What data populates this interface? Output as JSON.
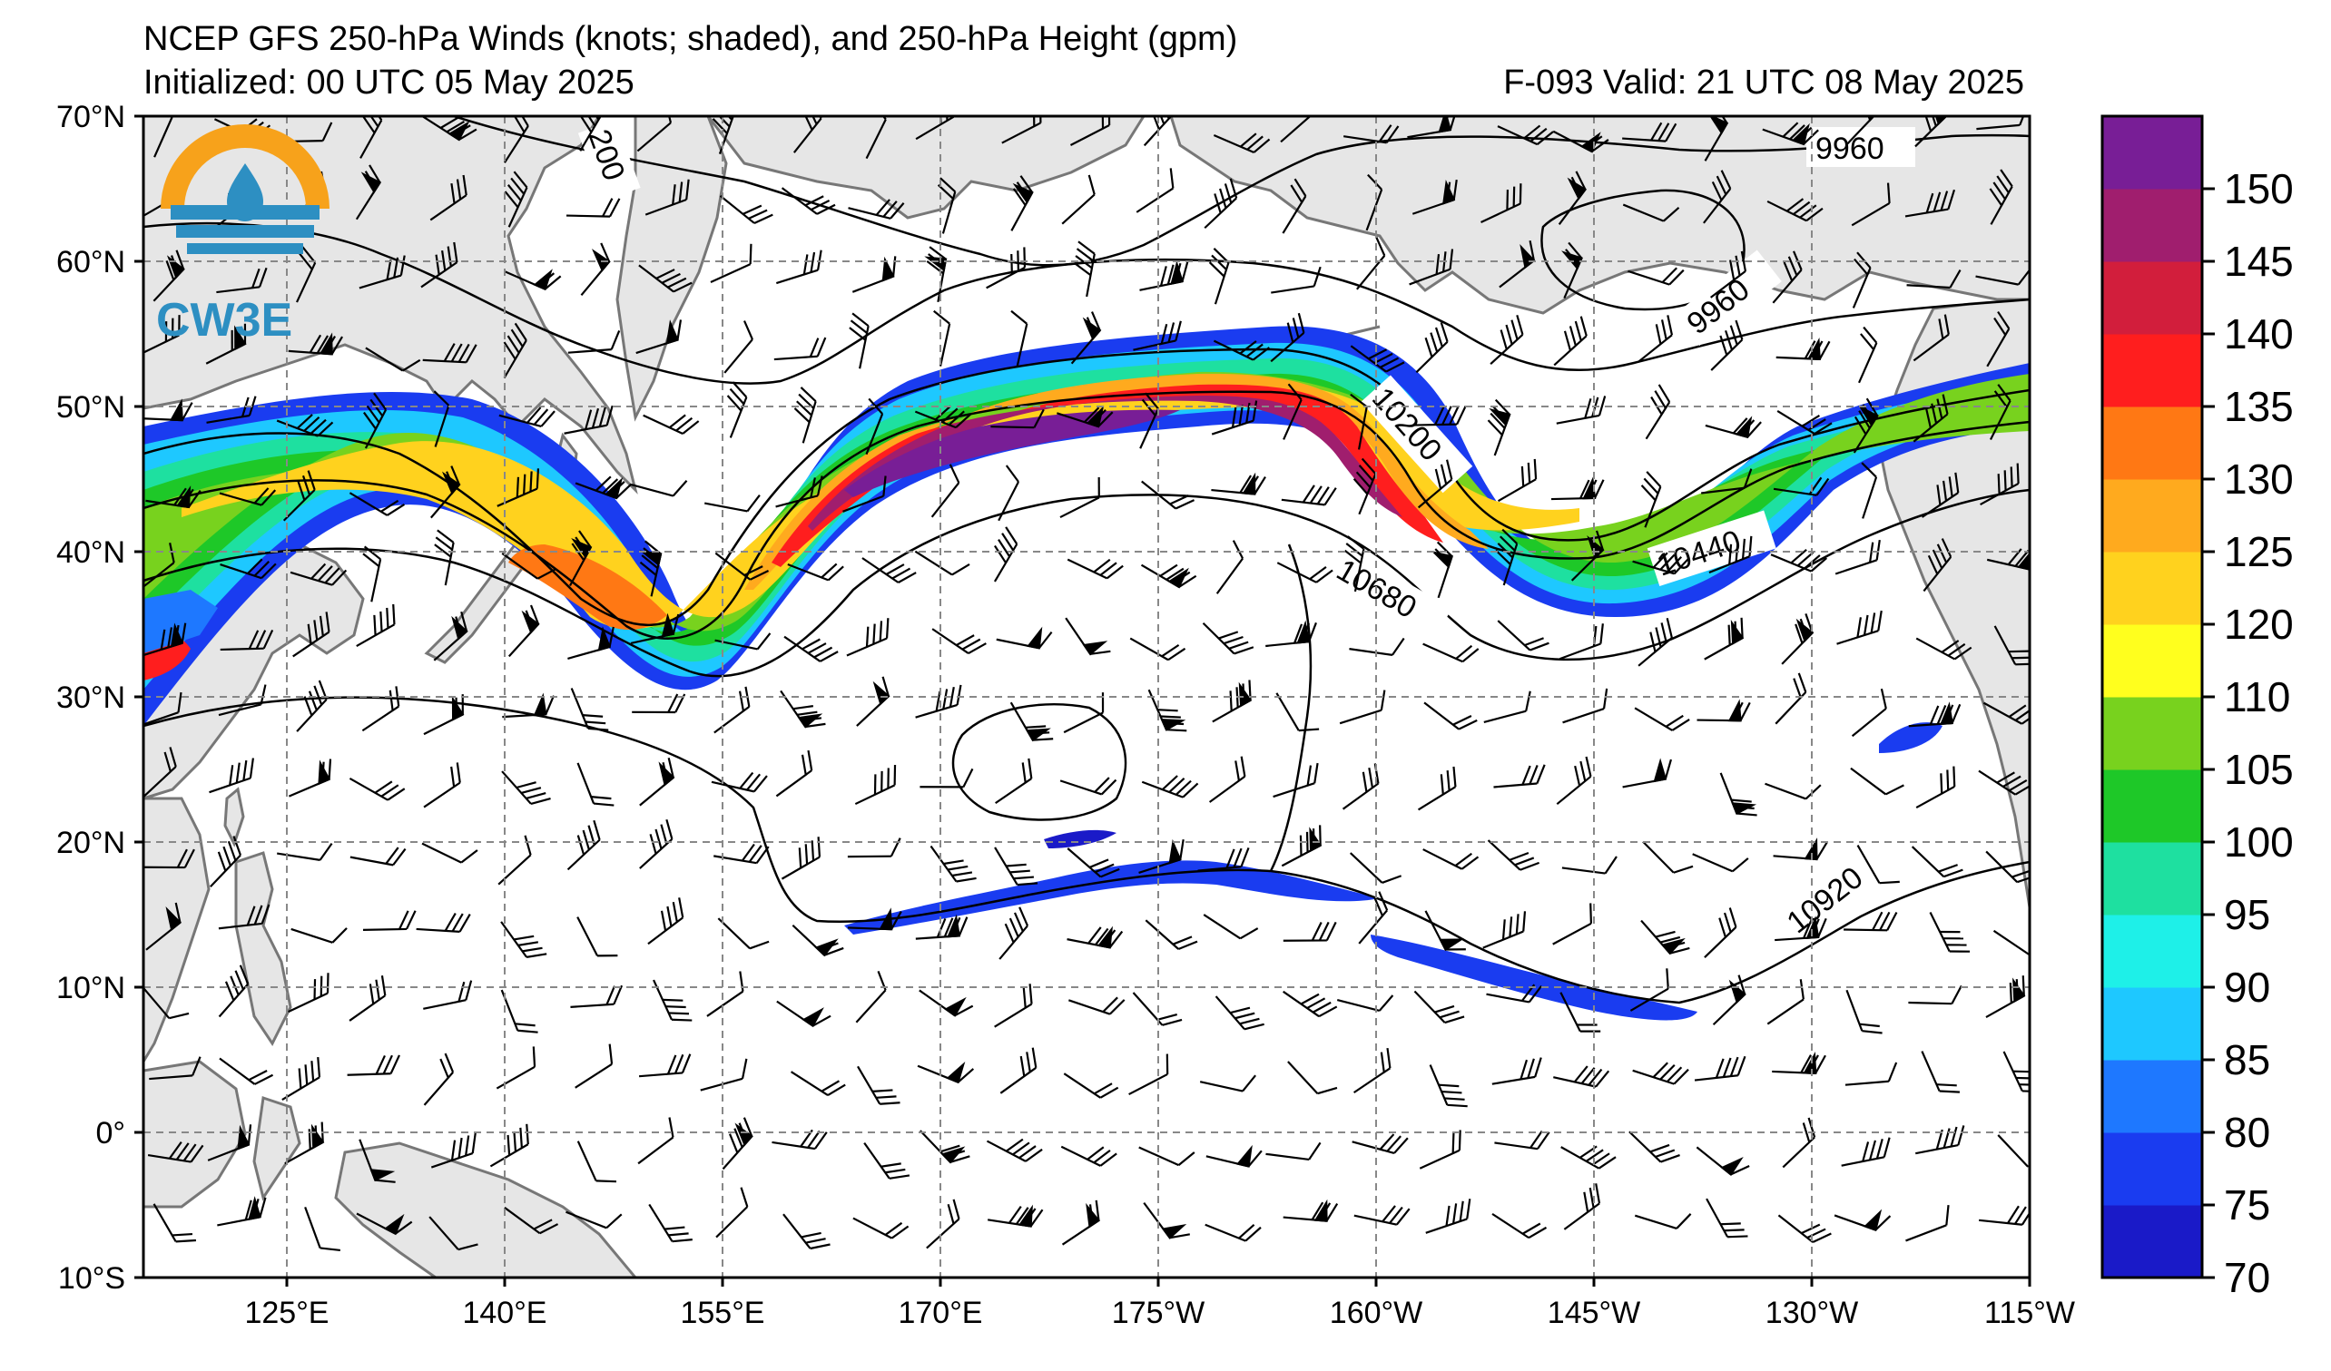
{
  "header": {
    "title": "NCEP GFS 250-hPa Winds (knots; shaded), and 250-hPa Height (gpm)",
    "initialized": "Initialized: 00 UTC 05 May 2025",
    "valid": "F-093  Valid: 21 UTC 08 May 2025"
  },
  "logo": {
    "text": "CW3E",
    "colors": {
      "ring": "#f7a21b",
      "water": "#2d8fc2"
    }
  },
  "map": {
    "projection": "cylindrical",
    "lon_range": [
      110,
      245
    ],
    "lat_range": [
      -10,
      70
    ],
    "lat_ticks": [
      "70°N",
      "60°N",
      "50°N",
      "40°N",
      "30°N",
      "20°N",
      "10°N",
      "0°",
      "10°S"
    ],
    "lon_ticks": [
      "125°E",
      "140°E",
      "155°E",
      "170°E",
      "175°W",
      "160°W",
      "145°W",
      "130°W",
      "115°W"
    ],
    "land_color": "#e6e6e6",
    "coast_color": "#777777",
    "grid": "dashed"
  },
  "height_contour_labels": [
    "9960",
    "9960",
    "10200",
    "10200",
    "10440",
    "10680",
    "10920"
  ],
  "colorbar": {
    "levels": [
      "70",
      "75",
      "80",
      "85",
      "90",
      "95",
      "100",
      "105",
      "110",
      "120",
      "125",
      "130",
      "135",
      "140",
      "145",
      "150"
    ],
    "colors": [
      "#1a1ac8",
      "#1a3cf0",
      "#1e78ff",
      "#1ec8ff",
      "#1ef0e8",
      "#1ee0a0",
      "#1ec828",
      "#78d21e",
      "#ffff1e",
      "#ffd21e",
      "#ffaa1e",
      "#ff7814",
      "#ff1e1e",
      "#d21e3c",
      "#a01e6e",
      "#781e96"
    ]
  }
}
